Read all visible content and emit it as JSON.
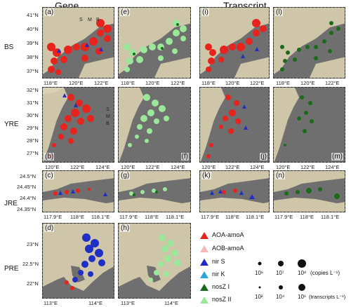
{
  "headers": {
    "gene": "Gene",
    "transcript": "Transcript"
  },
  "rows": {
    "bs": "BS",
    "yre": "YRE",
    "jre": "JRE",
    "pre": "PRE"
  },
  "panels": {
    "a": "(a)",
    "e": "(e)",
    "i": "(i)",
    "l": "(l)",
    "b": "(b)",
    "f": "(f)",
    "j": "(j)",
    "m": "(m)",
    "c": "(c)",
    "g": "(g)",
    "k": "(k)",
    "n": "(n)",
    "d": "(d)",
    "h": "(h)"
  },
  "smb": {
    "s": "S",
    "m": "M",
    "b": "B"
  },
  "ticks": {
    "bs_lat": [
      "41°N",
      "40°N",
      "39°N",
      "38°N",
      "37°N"
    ],
    "bs_lon": [
      "118°E",
      "120°E",
      "122°E"
    ],
    "yre_lat": [
      "32°N",
      "31°N",
      "30°N",
      "29°N",
      "28°N",
      "27°N"
    ],
    "yre_lon": [
      "120°E",
      "122°E",
      "124°E"
    ],
    "jre_lat": [
      "24.5°N",
      "24.45°N",
      "24.4°N",
      "24.35°N"
    ],
    "jre_lon": [
      "117.9°E",
      "118°E",
      "118.1°E"
    ],
    "pre_lat": [
      "23°N",
      "22.5°N",
      "22°N"
    ],
    "pre_lon": [
      "113°E",
      "114°E"
    ]
  },
  "legend": {
    "items": [
      {
        "label": "AOA-amoA",
        "color": "#e8231d",
        "shape": "triangle"
      },
      {
        "label": "AOB-amoA",
        "color": "#f4b8b8",
        "shape": "triangle"
      },
      {
        "label": "nir S",
        "color": "#1f2fc4",
        "shape": "triangle"
      },
      {
        "label": "nir K",
        "color": "#29a8e0",
        "shape": "triangle"
      },
      {
        "label": "nosZ I",
        "color": "#1a6b1a",
        "shape": "triangle"
      },
      {
        "label": "nosZ II",
        "color": "#9be89b",
        "shape": "triangle"
      }
    ],
    "size_gene": {
      "labels": [
        "10⁶",
        "10⁷",
        "10⁸"
      ],
      "unit": "(copies L⁻¹)"
    },
    "size_transcript": {
      "labels": [
        "10²",
        "10⁴",
        "10⁶"
      ],
      "unit": "(transcripts L⁻¹)"
    }
  },
  "colors": {
    "sea": "#6f6f6f",
    "land": "#cfc5a8",
    "aoa": "#e8231d",
    "aob": "#f4b8b8",
    "nirs": "#1f2fc4",
    "nirk": "#29a8e0",
    "nosz1": "#1a6b1a",
    "nosz2": "#9be89b"
  }
}
